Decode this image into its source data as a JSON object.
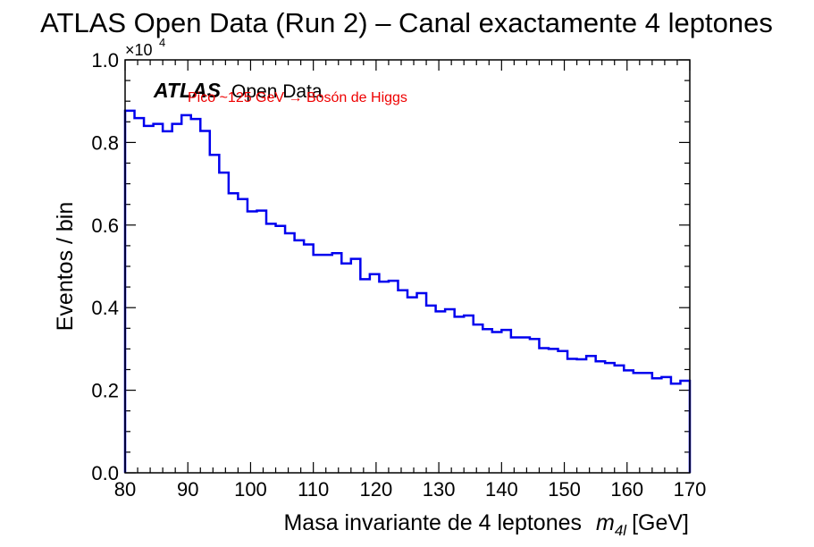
{
  "chart_data": {
    "type": "line",
    "style": "step-histogram",
    "title": "ATLAS Open Data (Run 2) – Canal exactamente 4 leptones",
    "xlabel_main": "Masa invariante de 4 leptones",
    "xlabel_var": "m",
    "xlabel_sub": "4l",
    "xlabel_unit": "[GeV]",
    "ylabel": "Eventos / bin",
    "y_multiplier": "×10",
    "y_multiplier_exp": "4",
    "xlim": [
      80,
      170
    ],
    "ylim": [
      0,
      1.0
    ],
    "x_ticks": [
      "80",
      "90",
      "100",
      "110",
      "120",
      "130",
      "140",
      "150",
      "160",
      "170"
    ],
    "y_ticks": [
      "0.0",
      "0.2",
      "0.4",
      "0.6",
      "0.8",
      "1.0"
    ],
    "atlas_label_bold": "ATLAS",
    "atlas_label_text": "Open Data",
    "annotation": "Pico ~125 GeV → Bosón de Higgs",
    "line_color": "#0000ee",
    "annotation_color": "#ee0000",
    "bin_width": 1.5,
    "bin_edges_start": 80,
    "values": [
      0.877,
      0.859,
      0.84,
      0.845,
      0.827,
      0.845,
      0.866,
      0.857,
      0.828,
      0.77,
      0.727,
      0.677,
      0.663,
      0.633,
      0.635,
      0.603,
      0.598,
      0.58,
      0.563,
      0.553,
      0.528,
      0.528,
      0.532,
      0.507,
      0.518,
      0.469,
      0.481,
      0.463,
      0.465,
      0.442,
      0.425,
      0.435,
      0.405,
      0.391,
      0.396,
      0.378,
      0.381,
      0.359,
      0.348,
      0.341,
      0.346,
      0.328,
      0.328,
      0.324,
      0.302,
      0.3,
      0.295,
      0.276,
      0.275,
      0.283,
      0.27,
      0.266,
      0.26,
      0.248,
      0.242,
      0.242,
      0.229,
      0.232,
      0.216,
      0.223
    ]
  }
}
